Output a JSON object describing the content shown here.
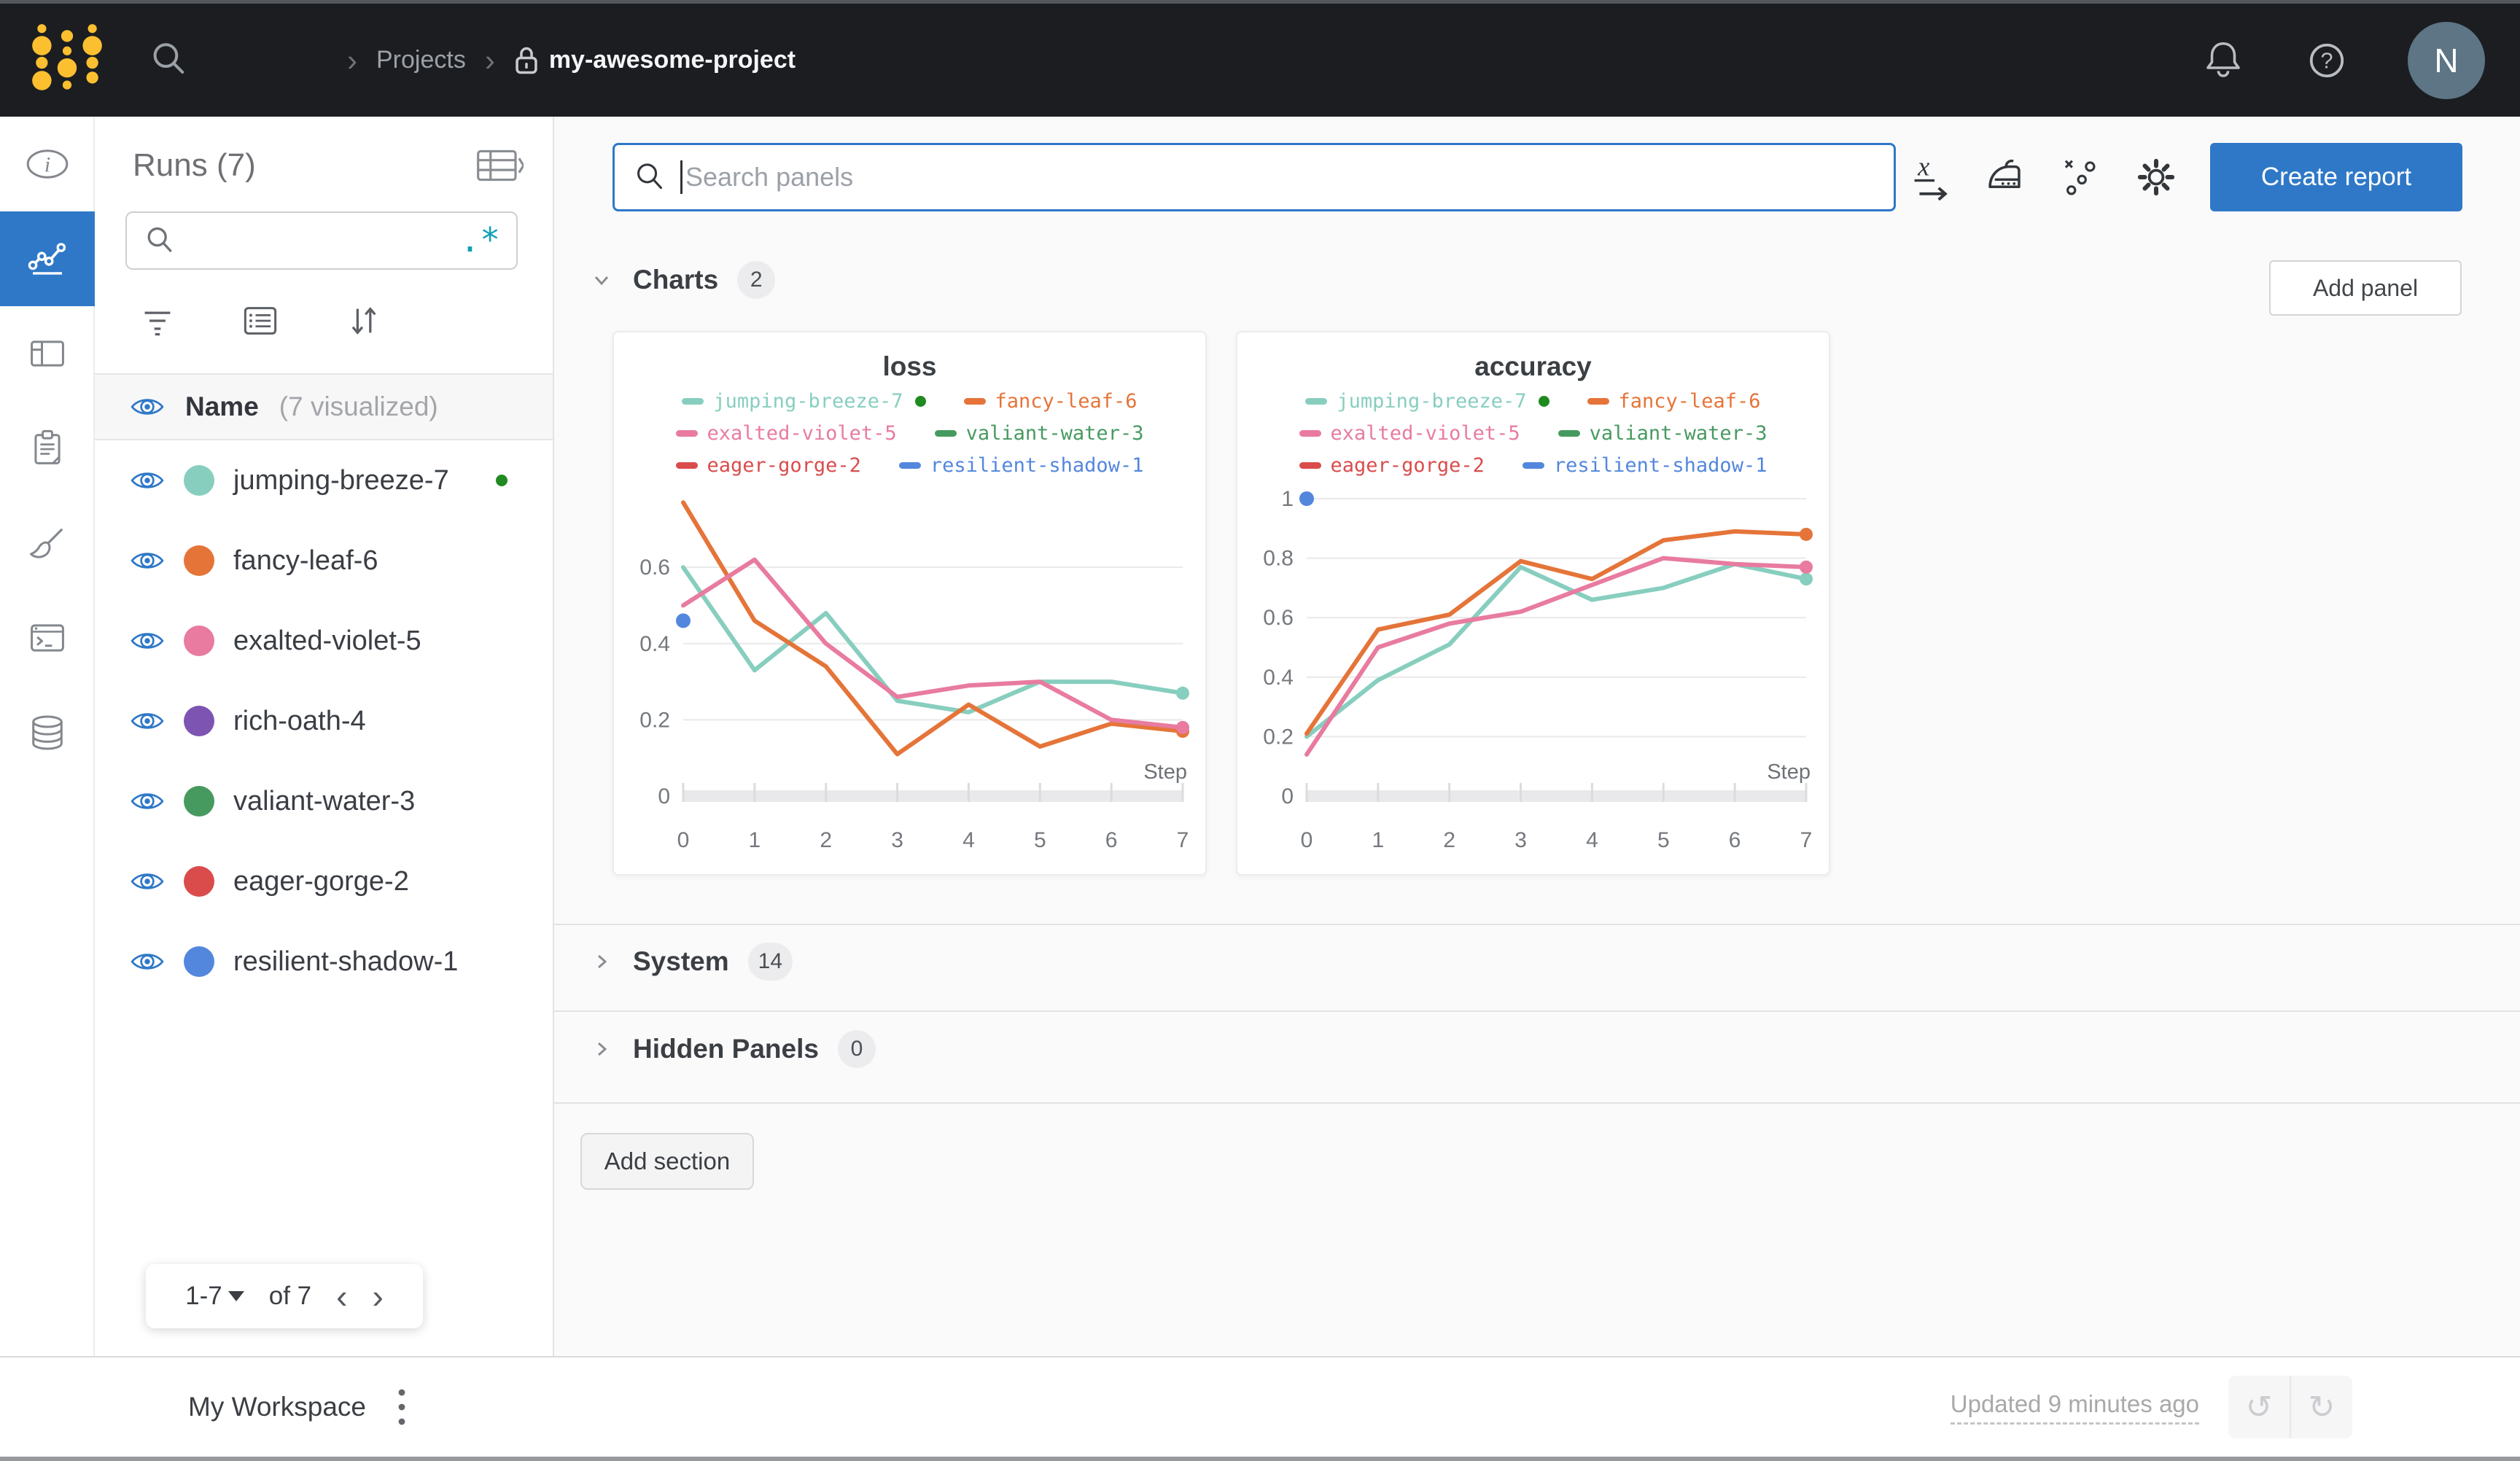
{
  "topbar": {
    "breadcrumb": {
      "chevron": "›",
      "projects": "Projects",
      "project": "my-awesome-project"
    },
    "avatar": "N",
    "icons": [
      "wandb-logo",
      "search-icon",
      "lock-icon",
      "bell-icon",
      "help-icon"
    ]
  },
  "left_rail": {
    "items": [
      "info-icon",
      "line-chart-icon",
      "table-icon",
      "clipboard-icon",
      "broom-icon",
      "terminal-icon",
      "database-icon"
    ],
    "active_index": 1,
    "active_color": "#2e78c7"
  },
  "runs_sidebar": {
    "title": "Runs (7)",
    "search_value": "",
    "regex": ".*",
    "header": {
      "name": "Name",
      "visualized": "(7 visualized)"
    },
    "runs": [
      {
        "name": "jumping-breeze-7",
        "color": "#87CEBF",
        "running": true
      },
      {
        "name": "fancy-leaf-6",
        "color": "#E57439",
        "running": false
      },
      {
        "name": "exalted-violet-5",
        "color": "#E87B9F",
        "running": false
      },
      {
        "name": "rich-oath-4",
        "color": "#7D54B2",
        "running": false
      },
      {
        "name": "valiant-water-3",
        "color": "#479A5F",
        "running": false
      },
      {
        "name": "eager-gorge-2",
        "color": "#DA4C4C",
        "running": false
      },
      {
        "name": "resilient-shadow-1",
        "color": "#5387DD",
        "running": false
      }
    ],
    "pagination": {
      "range": "1-7",
      "of": "of 7",
      "prev": "‹",
      "next": "›"
    }
  },
  "main": {
    "search_placeholder": "Search panels",
    "toolbar_icons": [
      "x-axis-icon",
      "smoothing-iron-icon",
      "outlier-scatter-icon",
      "gear-icon"
    ],
    "create_report": "Create report",
    "add_panel": "Add panel",
    "add_section": "Add section",
    "sections": [
      {
        "label": "Charts",
        "count": "2",
        "expanded": true
      },
      {
        "label": "System",
        "count": "14",
        "expanded": false
      },
      {
        "label": "Hidden Panels",
        "count": "0",
        "expanded": false
      }
    ]
  },
  "workspace_bar": {
    "title": "My Workspace",
    "updated": "Updated 9 minutes ago",
    "undo": "↺",
    "redo": "↻"
  },
  "chart_data": [
    {
      "type": "line",
      "title": "loss",
      "xlabel": "Step",
      "x": [
        0,
        1,
        2,
        3,
        4,
        5,
        6,
        7
      ],
      "xlim": [
        0,
        7
      ],
      "ylim": [
        0,
        0.78
      ],
      "yticks": [
        0,
        0.2,
        0.4,
        0.6
      ],
      "grid": true,
      "legend_position": "top",
      "series": [
        {
          "name": "jumping-breeze-7",
          "color": "#87CEBF",
          "running": true,
          "values": [
            0.6,
            0.33,
            0.48,
            0.25,
            0.22,
            0.3,
            0.3,
            0.27
          ]
        },
        {
          "name": "fancy-leaf-6",
          "color": "#E57439",
          "running": false,
          "values": [
            0.77,
            0.46,
            0.34,
            0.11,
            0.24,
            0.13,
            0.19,
            0.17
          ]
        },
        {
          "name": "exalted-violet-5",
          "color": "#E87B9F",
          "running": false,
          "values": [
            0.5,
            0.62,
            0.4,
            0.26,
            0.29,
            0.3,
            0.2,
            0.18
          ]
        },
        {
          "name": "valiant-water-3",
          "color": "#479A5F",
          "running": false,
          "values": []
        },
        {
          "name": "eager-gorge-2",
          "color": "#DA4C4C",
          "running": false,
          "values": []
        },
        {
          "name": "resilient-shadow-1",
          "color": "#5387DD",
          "running": false,
          "values": [
            0.46
          ]
        }
      ]
    },
    {
      "type": "line",
      "title": "accuracy",
      "xlabel": "Step",
      "x": [
        0,
        1,
        2,
        3,
        4,
        5,
        6,
        7
      ],
      "xlim": [
        0,
        7
      ],
      "ylim": [
        0,
        1.0
      ],
      "yticks": [
        0,
        0.2,
        0.4,
        0.6,
        0.8,
        1
      ],
      "grid": true,
      "legend_position": "top",
      "series": [
        {
          "name": "jumping-breeze-7",
          "color": "#87CEBF",
          "running": true,
          "values": [
            0.2,
            0.39,
            0.51,
            0.77,
            0.66,
            0.7,
            0.78,
            0.73
          ]
        },
        {
          "name": "fancy-leaf-6",
          "color": "#E57439",
          "running": false,
          "values": [
            0.21,
            0.56,
            0.61,
            0.79,
            0.73,
            0.86,
            0.89,
            0.88
          ]
        },
        {
          "name": "exalted-violet-5",
          "color": "#E87B9F",
          "running": false,
          "values": [
            0.14,
            0.5,
            0.58,
            0.62,
            0.71,
            0.8,
            0.78,
            0.77
          ]
        },
        {
          "name": "valiant-water-3",
          "color": "#479A5F",
          "running": false,
          "values": []
        },
        {
          "name": "eager-gorge-2",
          "color": "#DA4C4C",
          "running": false,
          "values": []
        },
        {
          "name": "resilient-shadow-1",
          "color": "#5387DD",
          "running": false,
          "values": [
            1.0
          ]
        }
      ]
    }
  ]
}
